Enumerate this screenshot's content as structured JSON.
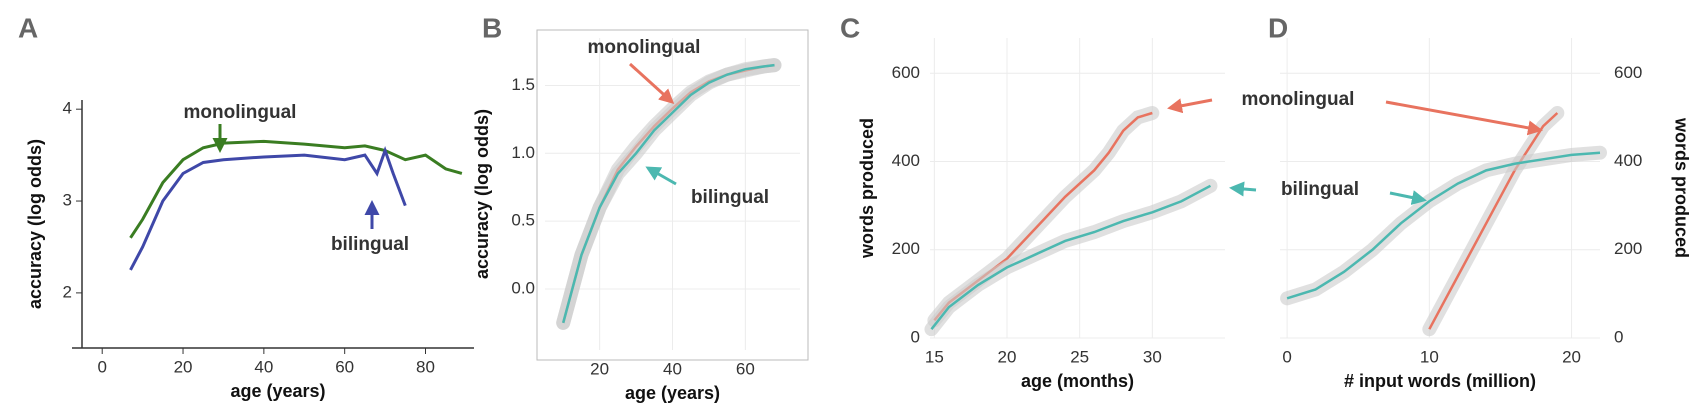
{
  "chart_data": [
    {
      "type": "line",
      "panel": "A",
      "xlabel": "age (years)",
      "ylabel": "accuracy (log odds)",
      "xlim": [
        -5,
        92
      ],
      "ylim": [
        1.4,
        4.1
      ],
      "xticks": [
        0,
        20,
        40,
        60,
        80
      ],
      "yticks": [
        2,
        3,
        4
      ],
      "grid": false,
      "frame": false,
      "series": [
        {
          "name": "monolingual",
          "color": "#3a7d22",
          "x": [
            7,
            10,
            15,
            20,
            25,
            30,
            40,
            50,
            60,
            65,
            70,
            75,
            80,
            85,
            89
          ],
          "values": [
            2.6,
            2.8,
            3.2,
            3.45,
            3.58,
            3.63,
            3.65,
            3.62,
            3.58,
            3.6,
            3.55,
            3.45,
            3.5,
            3.35,
            3.3
          ]
        },
        {
          "name": "bilingual",
          "color": "#3f48a8",
          "x": [
            7,
            10,
            15,
            20,
            25,
            30,
            40,
            50,
            60,
            65,
            68,
            70,
            72,
            75
          ],
          "values": [
            2.25,
            2.5,
            3.0,
            3.3,
            3.42,
            3.45,
            3.48,
            3.5,
            3.45,
            3.5,
            3.3,
            3.55,
            3.3,
            2.95
          ]
        }
      ]
    },
    {
      "type": "line",
      "panel": "B",
      "xlabel": "age (years)",
      "ylabel": "accuracy (log odds)",
      "xlim": [
        5,
        75
      ],
      "ylim": [
        -0.45,
        1.85
      ],
      "xticks": [
        20,
        40,
        60
      ],
      "yticks": [
        {
          "value": 0,
          "label": "0.0"
        },
        0.5,
        {
          "value": 1,
          "label": "1.0"
        },
        1.5
      ],
      "grid": true,
      "frame": true,
      "series": [
        {
          "name": "monolingual",
          "color": "#e8735f",
          "x": [
            10,
            15,
            20,
            25,
            30,
            35,
            40,
            45,
            50,
            55,
            60,
            65,
            68
          ],
          "values": [
            -0.25,
            0.25,
            0.6,
            0.88,
            1.05,
            1.2,
            1.33,
            1.45,
            1.53,
            1.58,
            1.61,
            1.64,
            1.65
          ]
        },
        {
          "name": "bilingual",
          "color": "#4cb8b0",
          "x": [
            10,
            15,
            20,
            25,
            30,
            35,
            40,
            45,
            50,
            55,
            60,
            65,
            68
          ],
          "values": [
            -0.25,
            0.25,
            0.6,
            0.85,
            1.0,
            1.17,
            1.3,
            1.43,
            1.52,
            1.58,
            1.62,
            1.64,
            1.65
          ]
        }
      ]
    },
    {
      "type": "line",
      "panel": "C",
      "xlabel": "age (months)",
      "ylabel": "words produced",
      "xlim": [
        14.7,
        35
      ],
      "ylim": [
        0,
        680
      ],
      "xticks": [
        15,
        20,
        25,
        30
      ],
      "yticks": [
        0,
        200,
        400,
        600
      ],
      "grid": true,
      "frame": false,
      "yaxis": "left",
      "series": [
        {
          "color": "#e8735f",
          "x": [
            15,
            16,
            18,
            20,
            22,
            24,
            26,
            27,
            28,
            29,
            30
          ],
          "values": [
            40,
            80,
            130,
            180,
            250,
            320,
            380,
            420,
            470,
            500,
            510
          ]
        },
        {
          "color": "#4cb8b0",
          "x": [
            14.8,
            16,
            18,
            20,
            22,
            24,
            26,
            28,
            30,
            32,
            34
          ],
          "values": [
            20,
            70,
            120,
            160,
            190,
            220,
            240,
            265,
            285,
            310,
            345
          ]
        }
      ]
    },
    {
      "type": "line",
      "panel": "D",
      "xlabel": "# input words (million)",
      "ylabel": "words produced",
      "xlim": [
        -0.5,
        22
      ],
      "ylim": [
        0,
        680
      ],
      "xticks": [
        0,
        10,
        20
      ],
      "yticks": [
        0,
        200,
        400,
        600
      ],
      "grid": true,
      "frame": false,
      "yaxis": "right",
      "series": [
        {
          "name": "monolingual",
          "color": "#e8735f",
          "x": [
            10,
            11,
            12,
            13,
            14,
            15,
            16,
            17,
            18,
            19
          ],
          "values": [
            20,
            80,
            140,
            200,
            260,
            320,
            380,
            430,
            480,
            510
          ]
        },
        {
          "name": "bilingual",
          "color": "#4cb8b0",
          "x": [
            0,
            2,
            4,
            6,
            8,
            10,
            12,
            14,
            16,
            18,
            20,
            22
          ],
          "values": [
            90,
            110,
            150,
            200,
            260,
            310,
            350,
            380,
            395,
            405,
            415,
            420
          ]
        }
      ]
    }
  ]
}
